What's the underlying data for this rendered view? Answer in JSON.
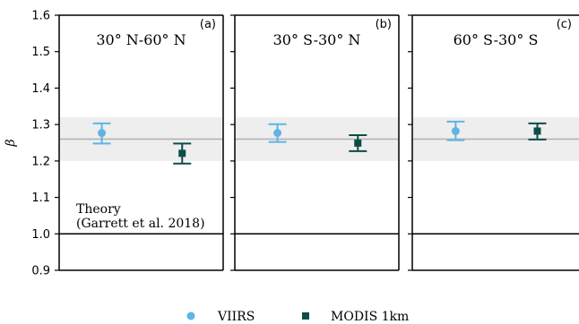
{
  "chart_data": {
    "type": "scatter",
    "ylabel": "β",
    "ylim": [
      0.9,
      1.6
    ],
    "yticks": [
      "0.9",
      "1.0",
      "1.1",
      "1.2",
      "1.3",
      "1.4",
      "1.5",
      "1.6"
    ],
    "grid": false,
    "legend_placement": "bottom-center",
    "reference": {
      "theory_value": 1.0,
      "band_center": 1.26,
      "band_range": [
        1.2,
        1.32
      ],
      "theory_label_line1": "Theory",
      "theory_label_line2": "(Garrett et al. 2018)"
    },
    "series": [
      {
        "name": "VIIRS",
        "color": "#5fb4e6",
        "marker": "circle",
        "y": [
          1.277,
          1.277,
          1.282
        ],
        "yerr_low": [
          1.248,
          1.252,
          1.257
        ],
        "yerr_high": [
          1.303,
          1.301,
          1.308
        ]
      },
      {
        "name": "MODIS 1km",
        "color": "#0b4d47",
        "marker": "square",
        "y": [
          1.221,
          1.249,
          1.282
        ],
        "yerr_low": [
          1.193,
          1.227,
          1.259
        ],
        "yerr_high": [
          1.248,
          1.271,
          1.303
        ]
      }
    ],
    "panels": [
      {
        "title": "30° N-60° N",
        "letter": "(a)"
      },
      {
        "title": "30° S-30° N",
        "letter": "(b)"
      },
      {
        "title": "60° S-30° S",
        "letter": "(c)"
      }
    ]
  }
}
